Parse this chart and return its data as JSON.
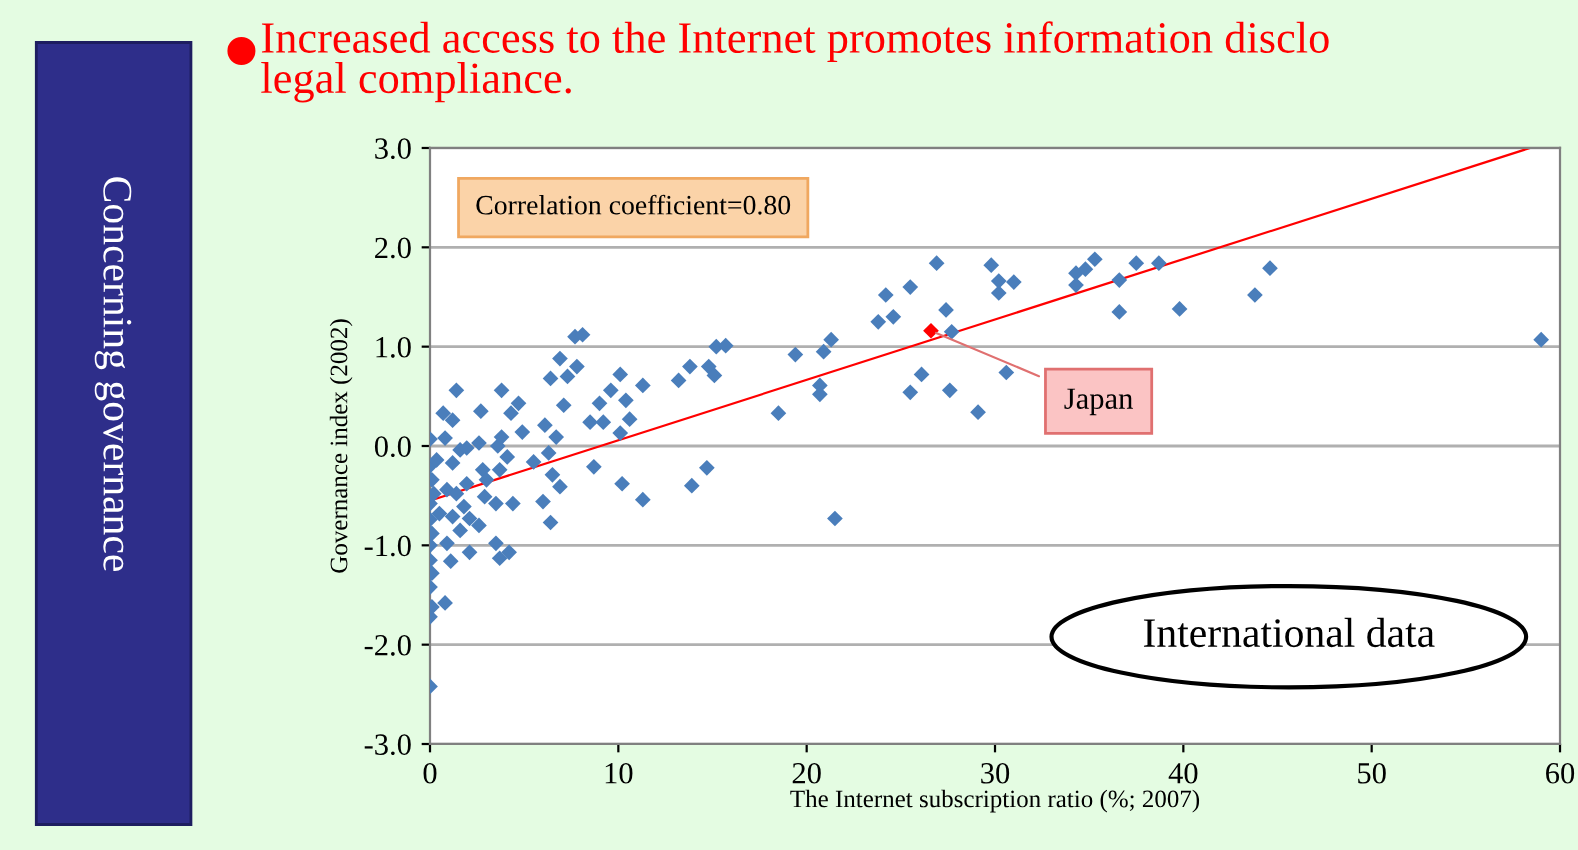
{
  "chart_data": {
    "type": "scatter",
    "title": "Increased access to the Internet promotes information disclo\nlegal compliance.",
    "xlabel": "The Internet subscription ratio (%; 2007)",
    "ylabel": "Governance index (2002)",
    "annotations": [
      "Correlation coefficient=0.80",
      "International data",
      "Concerning governance"
    ],
    "xlim": [
      0,
      60
    ],
    "xticks": [
      0,
      10,
      20,
      30,
      40,
      50,
      60
    ],
    "ylim": [
      -3,
      3
    ],
    "yticks": [
      {
        "value": -3,
        "label": "-3.0"
      },
      {
        "value": -2,
        "label": "-2.0"
      },
      {
        "value": -1,
        "label": "-1.0"
      },
      {
        "value": 0,
        "label": "0.0"
      },
      {
        "value": 1,
        "label": "1.0"
      },
      {
        "value": 2,
        "label": "2.0"
      },
      {
        "value": 3,
        "label": "3.0"
      }
    ],
    "grid": "y",
    "legend": false,
    "marker": "diamond",
    "series": [
      {
        "color": "#4a7ebb",
        "x": [
          0,
          0,
          0.1,
          0.8,
          0,
          0.1,
          0,
          1.1,
          0,
          0.1,
          0.9,
          2.1,
          3.7,
          4.2,
          3.5,
          0,
          0.5,
          1.6,
          2.6,
          2.1,
          1.2,
          0,
          0.2,
          0.1,
          0,
          0,
          0.8,
          0.7,
          1.2,
          1.4,
          0.35,
          0.9,
          1.4,
          1.8,
          1.95,
          1.2,
          1.6,
          1.95,
          2.6,
          2.7,
          2.9,
          2.8,
          3.0,
          3.5,
          3.6,
          3.8,
          3.8,
          3.7,
          4.1,
          4.4,
          4.3,
          4.7,
          4.9,
          5.5,
          6.0,
          6.4,
          6.1,
          6.3,
          6.5,
          6.7,
          6.4,
          6.9,
          7.1,
          7.3,
          6.9,
          7.7,
          8.1,
          7.8,
          8.5,
          8.7,
          9.0,
          9.2,
          9.6,
          10.1,
          10.1,
          10.4,
          10.6,
          10.2,
          11.3,
          11.3,
          13.2,
          13.8,
          14.8,
          15.1,
          15.2,
          15.7,
          13.9,
          14.7,
          18.5,
          19.4,
          20.9,
          21.3,
          20.7,
          20.7,
          21.5,
          23.8,
          24.6,
          24.2,
          25.5,
          26.9,
          27.4,
          27.7,
          26.1,
          25.5,
          27.6,
          29.1,
          30.6,
          29.8,
          30.2,
          30.2,
          31.0,
          34.3,
          34.8,
          35.3,
          34.3,
          36.6,
          36.6,
          37.5,
          38.7,
          39.8,
          43.8,
          44.6,
          59.0
        ],
        "values": [
          -2.42,
          -1.72,
          -1.62,
          -1.58,
          -1.42,
          -1.28,
          -1.15,
          -1.16,
          -1.0,
          -0.88,
          -0.98,
          -1.07,
          -1.13,
          -1.07,
          -0.98,
          -0.74,
          -0.68,
          -0.85,
          -0.8,
          -0.73,
          -0.71,
          -0.58,
          -0.48,
          -0.34,
          -0.2,
          0.07,
          0.08,
          0.33,
          0.26,
          0.56,
          -0.14,
          -0.44,
          -0.48,
          -0.61,
          -0.38,
          -0.17,
          -0.04,
          -0.02,
          0.03,
          0.35,
          -0.51,
          -0.24,
          -0.34,
          -0.58,
          0.0,
          0.56,
          0.09,
          -0.24,
          -0.11,
          -0.58,
          0.33,
          0.43,
          0.14,
          -0.16,
          -0.56,
          -0.77,
          0.21,
          -0.07,
          -0.29,
          0.09,
          0.68,
          0.88,
          0.41,
          0.7,
          -0.41,
          1.1,
          1.12,
          0.8,
          0.24,
          -0.21,
          0.43,
          0.24,
          0.56,
          0.13,
          0.72,
          0.46,
          0.27,
          -0.38,
          -0.54,
          0.61,
          0.66,
          0.8,
          0.8,
          0.71,
          1.0,
          1.01,
          -0.4,
          -0.22,
          0.33,
          0.92,
          0.95,
          1.07,
          0.61,
          0.52,
          -0.73,
          1.25,
          1.3,
          1.52,
          1.6,
          1.84,
          1.37,
          1.15,
          0.72,
          0.54,
          0.56,
          0.34,
          0.74,
          1.82,
          1.54,
          1.66,
          1.65,
          1.74,
          1.78,
          1.88,
          1.62,
          1.67,
          1.35,
          1.84,
          1.84,
          1.38,
          1.52,
          1.79,
          1.07
        ]
      },
      {
        "name": "Japan",
        "color": "#ff0000",
        "x": [
          26.6
        ],
        "values": [
          1.16
        ]
      },
      {
        "type": "line",
        "color": "#ff0000",
        "x": [
          0,
          58.4
        ],
        "values": [
          -0.55,
          3.0
        ],
        "marker": "none"
      }
    ]
  }
}
